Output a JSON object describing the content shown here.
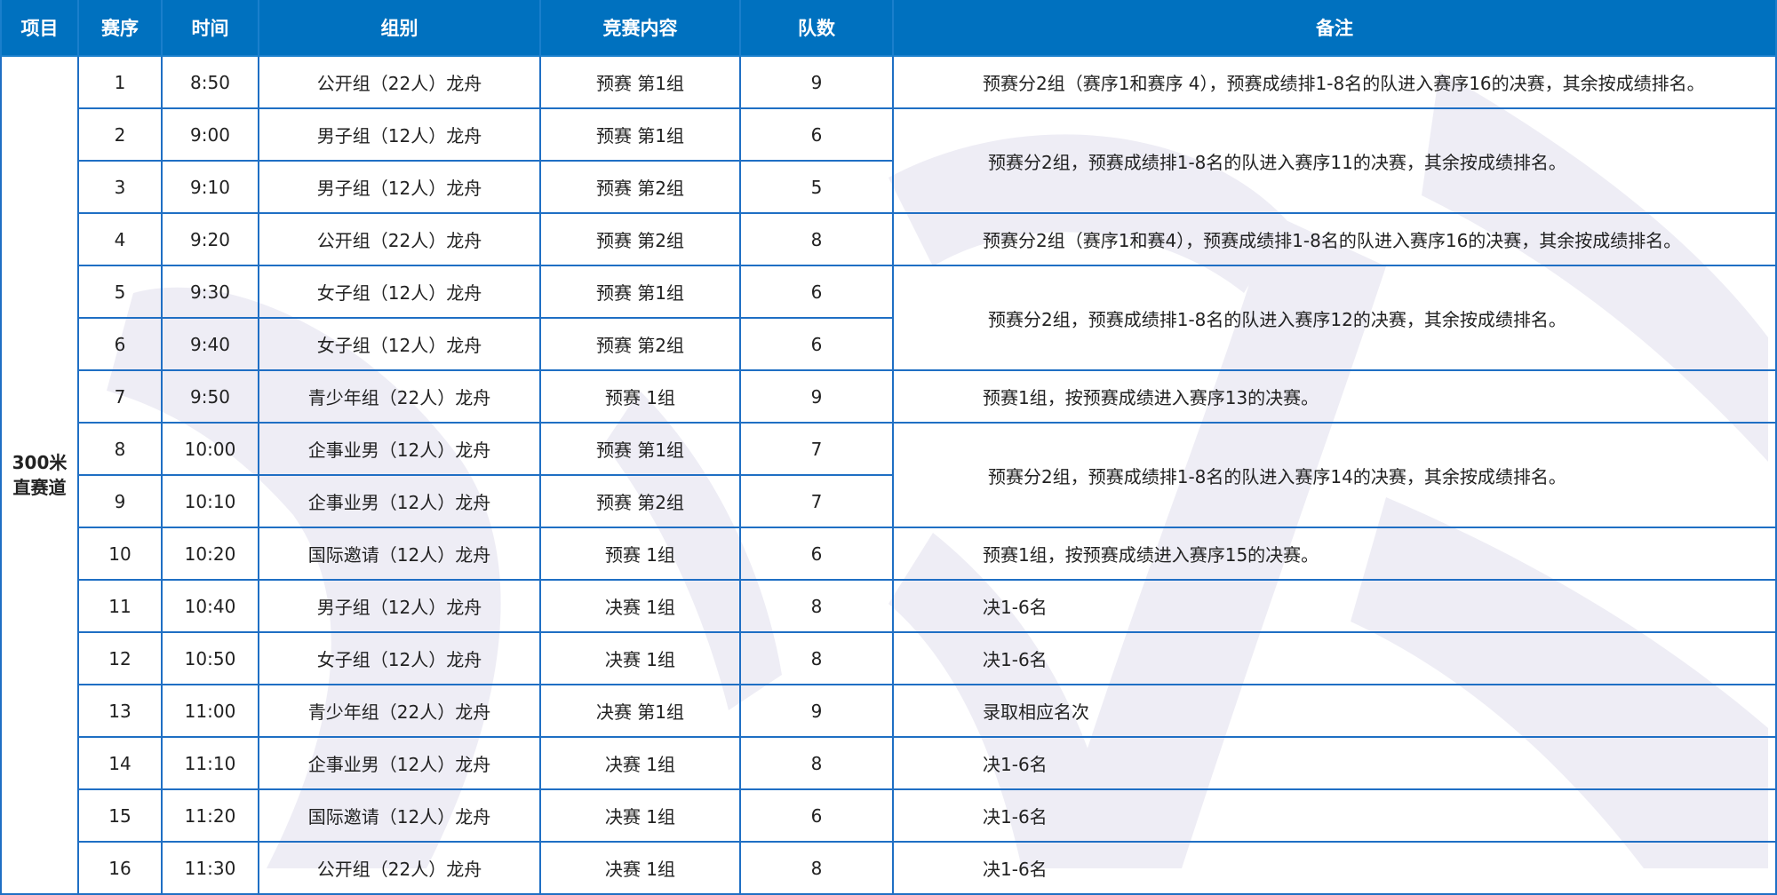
{
  "headers": [
    "项目",
    "赛序",
    "时间",
    "组别",
    "竞赛内容",
    "队数",
    "备注"
  ],
  "project": {
    "line1": "300米",
    "line2": "直赛道"
  },
  "colors": {
    "header_bg": "#0071bf",
    "border": "#1f6fc4",
    "watermark": "#eeedf5"
  },
  "rows": [
    {
      "seq": "1",
      "time": "8:50",
      "group": "公开组（22人）龙舟",
      "content": "预赛 第1组",
      "teams": "9",
      "remark": "预赛分2组（赛序1和赛序 4），预赛成绩排1-8名的队进入赛序16的决赛，其余按成绩排名。",
      "span": 1
    },
    {
      "seq": "2",
      "time": "9:00",
      "group": "男子组（12人）龙舟",
      "content": "预赛 第1组",
      "teams": "6",
      "remark": "预赛分2组，预赛成绩排1-8名的队进入赛序11的决赛，其余按成绩排名。",
      "span": 2
    },
    {
      "seq": "3",
      "time": "9:10",
      "group": "男子组（12人）龙舟",
      "content": "预赛 第2组",
      "teams": "5",
      "span": 0
    },
    {
      "seq": "4",
      "time": "9:20",
      "group": "公开组（22人）龙舟",
      "content": "预赛 第2组",
      "teams": "8",
      "remark": "预赛分2组（赛序1和赛4），预赛成绩排1-8名的队进入赛序16的决赛，其余按成绩排名。",
      "span": 1
    },
    {
      "seq": "5",
      "time": "9:30",
      "group": "女子组（12人）龙舟",
      "content": "预赛 第1组",
      "teams": "6",
      "remark": "预赛分2组，预赛成绩排1-8名的队进入赛序12的决赛，其余按成绩排名。",
      "span": 2
    },
    {
      "seq": "6",
      "time": "9:40",
      "group": "女子组（12人）龙舟",
      "content": "预赛 第2组",
      "teams": "6",
      "span": 0
    },
    {
      "seq": "7",
      "time": "9:50",
      "group": "青少年组（22人）龙舟",
      "content": "预赛 1组",
      "teams": "9",
      "remark": "预赛1组，按预赛成绩进入赛序13的决赛。",
      "span": 1
    },
    {
      "seq": "8",
      "time": "10:00",
      "group": "企事业男（12人）龙舟",
      "content": "预赛 第1组",
      "teams": "7",
      "remark": "预赛分2组，预赛成绩排1-8名的队进入赛序14的决赛，其余按成绩排名。",
      "span": 2
    },
    {
      "seq": "9",
      "time": "10:10",
      "group": "企事业男（12人）龙舟",
      "content": "预赛 第2组",
      "teams": "7",
      "span": 0
    },
    {
      "seq": "10",
      "time": "10:20",
      "group": "国际邀请（12人）龙舟",
      "content": "预赛 1组",
      "teams": "6",
      "remark": "预赛1组，按预赛成绩进入赛序15的决赛。",
      "span": 1
    },
    {
      "seq": "11",
      "time": "10:40",
      "group": "男子组（12人）龙舟",
      "content": "决赛 1组",
      "teams": "8",
      "remark": "决1-6名",
      "span": 1
    },
    {
      "seq": "12",
      "time": "10:50",
      "group": "女子组（12人）龙舟",
      "content": "决赛 1组",
      "teams": "8",
      "remark": "决1-6名",
      "span": 1
    },
    {
      "seq": "13",
      "time": "11:00",
      "group": "青少年组（22人）龙舟",
      "content": "决赛 第1组",
      "teams": "9",
      "remark": "录取相应名次",
      "span": 1
    },
    {
      "seq": "14",
      "time": "11:10",
      "group": "企事业男（12人）龙舟",
      "content": "决赛 1组",
      "teams": "8",
      "remark": "决1-6名",
      "span": 1
    },
    {
      "seq": "15",
      "time": "11:20",
      "group": "国际邀请（12人）龙舟",
      "content": "决赛 1组",
      "teams": "6",
      "remark": "决1-6名",
      "span": 1
    },
    {
      "seq": "16",
      "time": "11:30",
      "group": "公开组（22人）龙舟",
      "content": "决赛 1组",
      "teams": "8",
      "remark": "决1-6名",
      "span": 1
    }
  ]
}
